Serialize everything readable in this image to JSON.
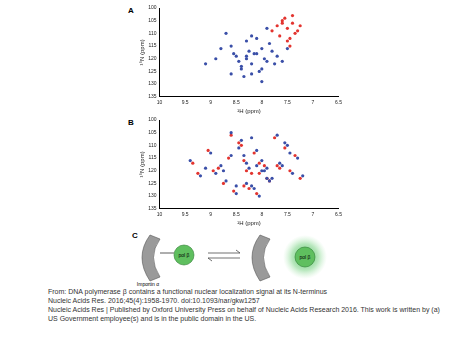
{
  "chart_data": [
    {
      "type": "scatter",
      "title": "A",
      "x_label": "¹H (ppm)",
      "y_label": "¹⁵N (ppm)",
      "xlim": [
        10,
        6.5
      ],
      "xticks": [
        10,
        9.5,
        9,
        8.5,
        8,
        7.5,
        7,
        6.5
      ],
      "ylim": [
        135,
        100
      ],
      "yticks": [
        135,
        130,
        125,
        120,
        115,
        110,
        105,
        100
      ],
      "grid": false,
      "marker": "circle",
      "series": [
        {
          "color": "#3a4fa8",
          "x": [
            8.1,
            8.3,
            7.9,
            8.0,
            8.5,
            8.2,
            7.8,
            8.4,
            8.6,
            7.7,
            8.0,
            8.2,
            8.3,
            7.95,
            8.15,
            8.45,
            7.85,
            8.05,
            8.25,
            8.7,
            7.6,
            8.8,
            8.35,
            8.1,
            7.75,
            8.55,
            8.0,
            8.9,
            7.5,
            8.2,
            9.1,
            8.4,
            7.9,
            8.6,
            8.3
          ],
          "values": [
            118,
            120,
            121,
            116,
            119,
            122,
            117,
            123,
            115,
            119,
            124,
            126,
            113,
            120,
            118,
            121,
            114,
            125,
            117,
            110,
            121,
            116,
            127,
            112,
            122,
            118,
            129,
            120,
            116,
            111,
            122,
            124,
            108,
            126,
            119
          ]
        },
        {
          "color": "#e3342f",
          "x": [
            7.4,
            7.5,
            7.35,
            7.6,
            7.45,
            7.7,
            7.3,
            7.55,
            7.65,
            7.5,
            7.4,
            7.8,
            7.25,
            7.6,
            7.45
          ],
          "values": [
            106,
            108,
            110,
            105,
            112,
            107,
            109,
            104,
            111,
            113,
            103,
            109,
            107,
            106,
            115
          ]
        }
      ]
    },
    {
      "type": "scatter",
      "title": "B",
      "x_label": "¹H (ppm)",
      "y_label": "¹⁵N (ppm)",
      "xlim": [
        10,
        6.5
      ],
      "xticks": [
        10,
        9.5,
        9,
        8.5,
        8,
        7.5,
        7,
        6.5
      ],
      "ylim": [
        135,
        100
      ],
      "yticks": [
        135,
        130,
        125,
        120,
        115,
        110,
        105,
        100
      ],
      "grid": false,
      "marker": "circle",
      "series": [
        {
          "color": "#3a4fa8",
          "x": [
            8.0,
            8.3,
            7.8,
            8.6,
            7.5,
            8.9,
            8.2,
            7.9,
            8.4,
            7.3,
            8.7,
            8.1,
            7.6,
            9.2,
            8.5,
            7.7,
            8.0,
            8.8,
            7.4,
            8.3,
            9.0,
            7.95,
            8.15,
            8.45,
            7.65,
            8.6,
            7.85,
            8.25,
            9.4,
            7.2,
            8.05,
            8.35,
            7.55,
            8.75,
            8.1,
            7.9,
            8.5,
            7.45,
            8.2,
            9.1
          ],
          "values": [
            120,
            117,
            123,
            114,
            110,
            121,
            126,
            119,
            108,
            115,
            124,
            112,
            118,
            122,
            129,
            106,
            116,
            118,
            121,
            125,
            113,
            120,
            127,
            111,
            117,
            105,
            124,
            119,
            116,
            122,
            130,
            114,
            109,
            120,
            118,
            123,
            126,
            113,
            107,
            119
          ]
        },
        {
          "color": "#e3342f",
          "x": [
            8.05,
            8.35,
            7.85,
            8.65,
            7.55,
            8.95,
            8.25,
            7.95,
            8.45,
            7.35,
            8.75,
            8.15,
            7.65,
            9.25,
            8.55,
            7.75,
            8.05,
            8.85,
            7.45,
            8.35,
            9.05,
            8.2,
            8.4,
            7.7,
            8.6,
            7.9,
            8.3,
            9.35,
            7.25,
            8.1
          ],
          "values": [
            121,
            116,
            124,
            115,
            111,
            120,
            127,
            118,
            109,
            114,
            125,
            113,
            119,
            121,
            128,
            107,
            117,
            119,
            120,
            126,
            112,
            121,
            110,
            118,
            106,
            123,
            120,
            117,
            123,
            129
          ]
        }
      ]
    }
  ],
  "diagram": {
    "label": "C",
    "receptor": "Importin α",
    "protein": "pol β"
  },
  "caption": {
    "lines": [
      "From: DNA polymerase β contains a functional nuclear localization signal at its N-terminus",
      "Nucleic Acids Res. 2016;45(4):1958-1970. doi:10.1093/nar/gkw1257",
      "Nucleic Acids Res | Published by Oxford University Press on behalf of Nucleic Acids Research 2016. This work is written by (a) US Government employee(s) and is in the public domain in the US."
    ]
  }
}
